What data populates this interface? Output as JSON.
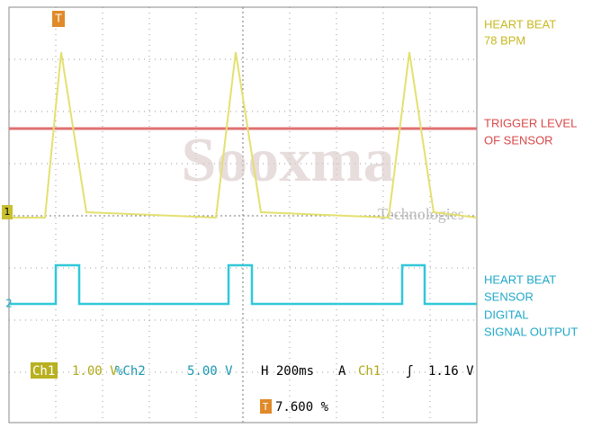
{
  "markers": {
    "trigger": "T",
    "ch1": "1",
    "ch2": "2"
  },
  "watermark": {
    "brand": "Sooxma",
    "sub": "Technologies"
  },
  "annotations": {
    "heart_beat": [
      "HEART BEAT",
      "78 BPM"
    ],
    "trigger_level": [
      "TRIGGER LEVEL",
      "OF SENSOR"
    ],
    "sensor_output": [
      "HEART BEAT",
      "SENSOR",
      "DIGITAL",
      "SIGNAL OUTPUT"
    ]
  },
  "status": {
    "ch1_label": "Ch1",
    "ch1_scale": "1.00 V",
    "ch2_label": "%Ch2",
    "ch2_scale": "5.00 V",
    "timebase": "H 200ms",
    "mode": "A",
    "trig_source": "Ch1",
    "trig_slope": "ʃ",
    "trig_level": "1.16 V",
    "trig_pos_icon": "T",
    "trig_pos": "7.600 %"
  }
}
